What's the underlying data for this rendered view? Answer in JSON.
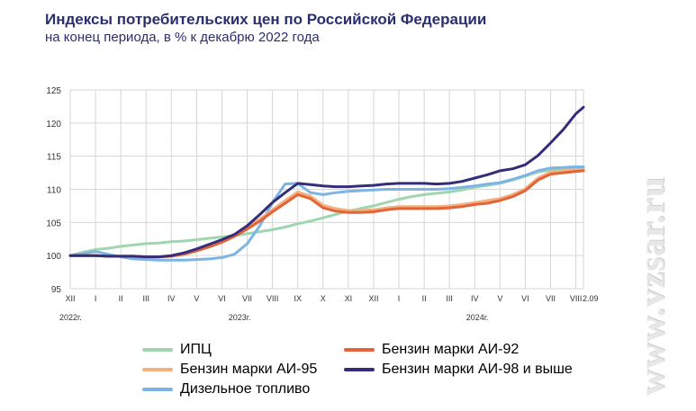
{
  "watermark": "www.vzsar.ru",
  "chart_data": {
    "type": "line",
    "title": "Индексы потребительских цен по Российской Федерации",
    "subtitle": "на конец периода, в % к декабрю 2022 года",
    "ylim": [
      95,
      125
    ],
    "yticks": [
      95,
      100,
      105,
      110,
      115,
      120,
      125
    ],
    "grid": true,
    "legend_position": "bottom",
    "x_tick_labels": [
      "XII",
      "I",
      "II",
      "III",
      "IV",
      "V",
      "VI",
      "VII",
      "VIII",
      "IX",
      "X",
      "XI",
      "XII",
      "I",
      "II",
      "III",
      "IV",
      "V",
      "VI",
      "VII",
      "VIII"
    ],
    "x_last_label": "2.09",
    "year_labels": [
      {
        "label": "2022г.",
        "at": 0
      },
      {
        "label": "2023г.",
        "at": 6.7
      },
      {
        "label": "2024г.",
        "at": 16.1
      }
    ],
    "x": [
      0,
      0.5,
      1,
      1.5,
      2,
      2.5,
      3,
      3.5,
      4,
      4.5,
      5,
      5.5,
      6,
      6.5,
      7,
      7.5,
      8,
      8.5,
      9,
      9.5,
      10,
      10.5,
      11,
      11.5,
      12,
      12.5,
      13,
      13.5,
      14,
      14.5,
      15,
      15.5,
      16,
      16.5,
      17,
      17.5,
      18,
      18.5,
      19,
      19.5,
      20,
      20.3
    ],
    "series": [
      {
        "name": "ИПЦ",
        "color": "#9fd6b0",
        "values": [
          100.0,
          100.5,
          100.9,
          101.1,
          101.4,
          101.6,
          101.8,
          101.9,
          102.1,
          102.2,
          102.4,
          102.6,
          102.8,
          103.0,
          103.3,
          103.6,
          103.9,
          104.3,
          104.8,
          105.2,
          105.7,
          106.2,
          106.7,
          107.1,
          107.5,
          108.0,
          108.5,
          108.9,
          109.2,
          109.4,
          109.6,
          109.9,
          110.3,
          110.6,
          110.9,
          111.4,
          112.0,
          112.6,
          112.9,
          113.0,
          113.1,
          113.2
        ]
      },
      {
        "name": "Бензин марки АИ-92",
        "color": "#e2653a",
        "values": [
          100.0,
          100.0,
          100.0,
          99.9,
          99.9,
          99.9,
          99.8,
          99.8,
          99.9,
          100.2,
          100.7,
          101.3,
          102.0,
          102.9,
          104.0,
          105.2,
          106.6,
          107.9,
          109.2,
          108.6,
          107.2,
          106.7,
          106.5,
          106.5,
          106.6,
          106.9,
          107.1,
          107.1,
          107.1,
          107.1,
          107.2,
          107.4,
          107.7,
          107.9,
          108.3,
          108.9,
          109.8,
          111.4,
          112.3,
          112.5,
          112.7,
          112.8
        ]
      },
      {
        "name": "Бензин марки АИ-95",
        "color": "#f4b07e",
        "values": [
          100.0,
          100.0,
          100.0,
          99.9,
          99.9,
          99.9,
          99.8,
          99.8,
          99.9,
          100.2,
          100.8,
          101.4,
          102.2,
          103.1,
          104.3,
          105.5,
          106.9,
          108.3,
          109.6,
          109.0,
          107.6,
          107.1,
          106.8,
          106.8,
          106.9,
          107.2,
          107.4,
          107.4,
          107.4,
          107.4,
          107.5,
          107.7,
          108.0,
          108.3,
          108.6,
          109.2,
          110.1,
          111.7,
          112.6,
          112.8,
          112.9,
          113.0
        ]
      },
      {
        "name": "Бензин марки АИ-98 и выше",
        "color": "#342e7a",
        "values": [
          100.0,
          100.0,
          100.0,
          99.9,
          99.9,
          99.9,
          99.8,
          99.8,
          100.0,
          100.4,
          101.0,
          101.7,
          102.4,
          103.2,
          104.5,
          106.2,
          108.0,
          109.5,
          110.9,
          110.7,
          110.5,
          110.4,
          110.4,
          110.5,
          110.6,
          110.8,
          110.9,
          110.9,
          110.9,
          110.8,
          110.9,
          111.2,
          111.7,
          112.2,
          112.8,
          113.1,
          113.7,
          115.1,
          117.0,
          119.0,
          121.4,
          122.4
        ]
      },
      {
        "name": "Дизельное топливо",
        "color": "#7cb4e4",
        "values": [
          100.0,
          100.3,
          100.6,
          100.2,
          99.8,
          99.5,
          99.4,
          99.3,
          99.3,
          99.3,
          99.4,
          99.5,
          99.7,
          100.2,
          101.8,
          104.5,
          108.0,
          110.8,
          110.9,
          109.5,
          109.2,
          109.5,
          109.7,
          109.8,
          109.9,
          110.0,
          110.0,
          110.0,
          110.0,
          110.0,
          110.1,
          110.3,
          110.5,
          110.8,
          111.0,
          111.5,
          112.1,
          112.8,
          113.2,
          113.3,
          113.4,
          113.4
        ]
      }
    ]
  },
  "legend": [
    {
      "label": "ИПЦ",
      "color": "#9fd6b0",
      "col": 0,
      "row": 0
    },
    {
      "label": "Бензин марки АИ-92",
      "color": "#e2653a",
      "col": 1,
      "row": 0
    },
    {
      "label": "Бензин марки АИ-95",
      "color": "#f4b07e",
      "col": 0,
      "row": 1
    },
    {
      "label": "Бензин марки АИ-98 и  выше",
      "color": "#342e7a",
      "col": 1,
      "row": 1
    },
    {
      "label": "Дизельное топливо",
      "color": "#7cb4e4",
      "col": 0,
      "row": 2
    }
  ]
}
